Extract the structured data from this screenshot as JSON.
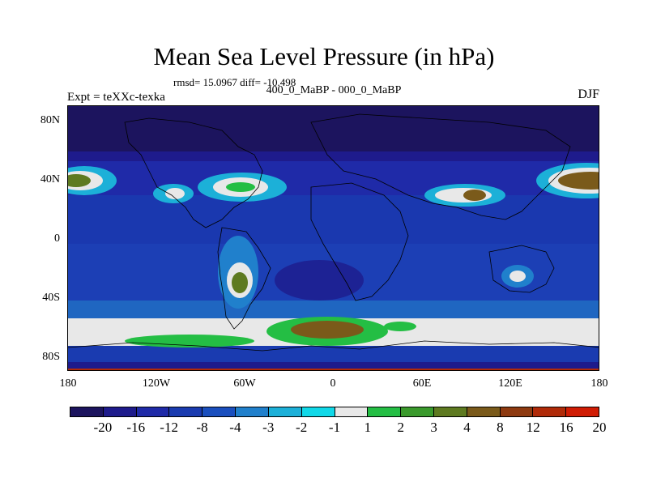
{
  "title": "Mean Sea Level Pressure (in hPa)",
  "stats_line": "rmsd= 15.0967 diff= -10.498",
  "subtitle": "400_0_MaBP - 000_0_MaBP",
  "experiment": "Expt = teXXc-texka",
  "season": "DJF",
  "lat_ticks": [
    "80N",
    "40N",
    "0",
    "40S",
    "80S"
  ],
  "lon_ticks": [
    "180",
    "120W",
    "60W",
    "0",
    "60E",
    "120E",
    "180"
  ],
  "colorbar": {
    "colors": [
      "#1c145e",
      "#1e1b8c",
      "#1f2aa8",
      "#1a3bb0",
      "#1a4fbe",
      "#2080cc",
      "#1cb0d8",
      "#10d8e8",
      "#e8e8e8",
      "#24be44",
      "#3a9a2c",
      "#5e7a20",
      "#7a5a1a",
      "#8e3a10",
      "#b02a08",
      "#d01c04"
    ],
    "labels": [
      "-20",
      "-16",
      "-12",
      "-8",
      "-4",
      "-3",
      "-2",
      "-1",
      "1",
      "2",
      "3",
      "4",
      "8",
      "12",
      "16",
      "20"
    ]
  },
  "map_palette": {
    "deep": "#1c145e",
    "navy": "#1e1b8c",
    "blue": "#1f2aa8",
    "mid": "#1a3bb0",
    "light": "#1a4fbe",
    "sky": "#2080cc",
    "cyan": "#1cb0d8",
    "white": "#e8e8e8",
    "green": "#24be44",
    "olive": "#5e7a20",
    "brown": "#7a5a1a",
    "red": "#b02a08"
  }
}
